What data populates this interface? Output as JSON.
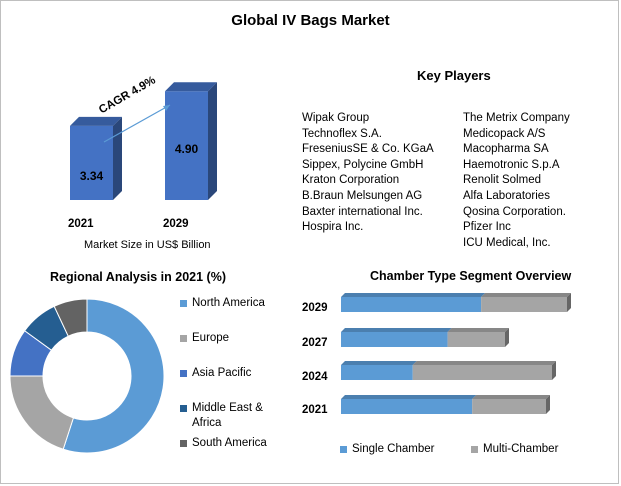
{
  "title": "Global IV Bags Market",
  "key_players": {
    "title": "Key Players",
    "left": [
      "Wipak Group",
      "Technoflex S.A.",
      "FreseniusSE & Co. KGaA",
      "Sippex, Polycine GmbH",
      "Kraton Corporation",
      "B.Braun Melsungen AG",
      "Baxter international Inc.",
      "Hospira Inc."
    ],
    "right": [
      "The Metrix Company",
      "Medicopack A/S",
      "Macopharma SA",
      "Haemotronic S.p.A",
      "Renolit Solmed",
      "Alfa Laboratories",
      "Qosina Corporation.",
      "Pfizer Inc",
      "ICU Medical, Inc."
    ]
  },
  "colors": {
    "blue": "#4472c4",
    "north_america": "#5b9bd5",
    "europe": "#a5a5a5",
    "asia_pacific": "#4472c4",
    "middle_east_africa": "#255e91",
    "south_america": "#636363",
    "single": "#5b9bd5",
    "multi": "#a5a5a5"
  },
  "chart_data": [
    {
      "type": "bar",
      "categories": [
        "2021",
        "2029"
      ],
      "values": [
        3.34,
        4.9
      ],
      "value_labels": [
        "3.34",
        "4.90"
      ],
      "xlabel": "Market Size in US$ Billion",
      "annotation": "CAGR 4.9%"
    },
    {
      "type": "pie",
      "title": "Regional Analysis in 2021 (%)",
      "labels": [
        "North America",
        "Europe",
        "Asia Pacific",
        "Middle East & Africa",
        "South America"
      ],
      "values": [
        55,
        20,
        10,
        8,
        7
      ],
      "legend": "right"
    },
    {
      "type": "bar",
      "orientation": "horizontal",
      "stacked": true,
      "title": "Chamber Type Segment Overview",
      "categories": [
        "2029",
        "2027",
        "2024",
        "2021"
      ],
      "series": [
        {
          "name": "Single Chamber",
          "values": [
            62,
            65,
            34,
            64
          ]
        },
        {
          "name": "Multi-Chamber",
          "values": [
            38,
            35,
            66,
            36
          ]
        }
      ],
      "legend": "bottom"
    }
  ]
}
